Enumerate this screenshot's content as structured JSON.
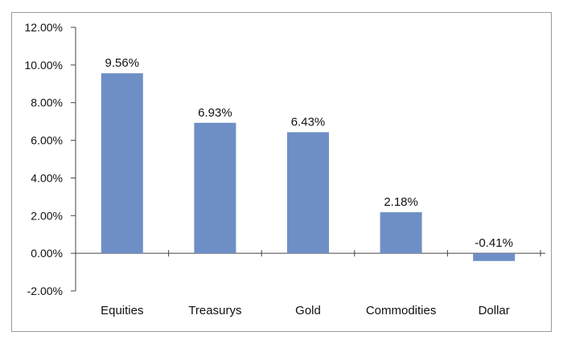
{
  "chart_data": {
    "type": "bar",
    "title": "",
    "xlabel": "",
    "ylabel": "",
    "categories": [
      "Equities",
      "Treasurys",
      "Gold",
      "Commodities",
      "Dollar"
    ],
    "values": [
      9.56,
      6.93,
      6.43,
      2.18,
      -0.41
    ],
    "data_labels": [
      "9.56%",
      "6.93%",
      "6.43%",
      "2.18%",
      "-0.41%"
    ],
    "ylim": [
      -2,
      12
    ],
    "y_ticks": [
      12,
      10,
      8,
      6,
      4,
      2,
      0,
      -2
    ],
    "y_tick_labels": [
      "12.00%",
      "10.00%",
      "8.00%",
      "6.00%",
      "4.00%",
      "2.00%",
      "0.00%",
      "-2.00%"
    ],
    "grid": false,
    "legend": "none",
    "bar_color": "#6E8FC6",
    "axis_color": "#444444",
    "frame_color": "#9A9A9A"
  }
}
